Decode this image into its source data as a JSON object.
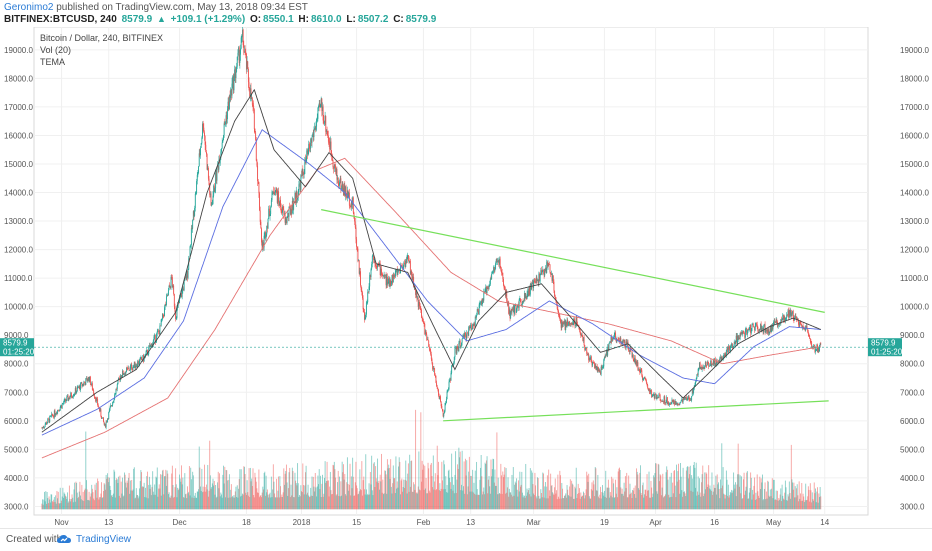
{
  "header": {
    "username": "Geronimo2",
    "published_text": "published on TradingView.com, May 13, 2018 09:34 EST",
    "symbol": "BITFINEX:BTCUSD, 240",
    "last": "8579.9",
    "change": "+109.1 (+1.29%)",
    "o_label": "O:",
    "o": "8550.1",
    "h_label": "H:",
    "h": "8610.0",
    "l_label": "L:",
    "l": "8507.2",
    "c_label": "C:",
    "c": "8579.9"
  },
  "legend": {
    "title": "Bitcoin / Dollar, 240, BITFINEX",
    "volume": "Vol (20)",
    "indicator": "TEMA"
  },
  "price_badge": {
    "price": "8579.9",
    "countdown": "01:25:20"
  },
  "footer": {
    "created_with": "Created with",
    "brand": "TradingView"
  },
  "colors": {
    "up": "#26a69a",
    "down": "#ef5350",
    "tema_fast": "#444444",
    "tema_mid": "#5b6ee1",
    "tema_slow": "#e57373",
    "trendline": "#76e05a",
    "badge": "#26a69a"
  },
  "chart_data": {
    "type": "candlestick",
    "symbol": "BITFINEX:BTCUSD",
    "timeframe": "240",
    "ylim": [
      2700,
      19800
    ],
    "y_ticks": [
      3000,
      4000,
      5000,
      6000,
      7000,
      8000,
      9000,
      10000,
      11000,
      12000,
      13000,
      14000,
      15000,
      16000,
      17000,
      18000,
      19000
    ],
    "y_tick_labels": [
      "3000.0",
      "4000.0",
      "5000.0",
      "6000.0",
      "7000.0",
      "8000.0",
      "9000.0",
      "10000.0",
      "11000.0",
      "12000.0",
      "13000.0",
      "14000.0",
      "15000.0",
      "16000.0",
      "17000.0",
      "18000.0",
      "19000.0"
    ],
    "x_range": [
      "2017-10-25",
      "2018-05-25"
    ],
    "x_ticks": [
      {
        "label": "Nov",
        "date": "2017-11-01"
      },
      {
        "label": "13",
        "date": "2017-11-13"
      },
      {
        "label": "Dec",
        "date": "2017-12-01"
      },
      {
        "label": "18",
        "date": "2017-12-18"
      },
      {
        "label": "2018",
        "date": "2018-01-01"
      },
      {
        "label": "15",
        "date": "2018-01-15"
      },
      {
        "label": "Feb",
        "date": "2018-02-01"
      },
      {
        "label": "13",
        "date": "2018-02-13"
      },
      {
        "label": "Mar",
        "date": "2018-03-01"
      },
      {
        "label": "19",
        "date": "2018-03-19"
      },
      {
        "label": "Apr",
        "date": "2018-04-01"
      },
      {
        "label": "16",
        "date": "2018-04-16"
      },
      {
        "label": "May",
        "date": "2018-05-01"
      },
      {
        "label": "14",
        "date": "2018-05-14"
      }
    ],
    "price_path": [
      [
        "2017-10-27",
        5750
      ],
      [
        "2017-11-02",
        6700
      ],
      [
        "2017-11-08",
        7500
      ],
      [
        "2017-11-12",
        5800
      ],
      [
        "2017-11-16",
        7600
      ],
      [
        "2017-11-22",
        8200
      ],
      [
        "2017-11-26",
        9200
      ],
      [
        "2017-11-29",
        11000
      ],
      [
        "2017-11-30",
        9700
      ],
      [
        "2017-12-03",
        11200
      ],
      [
        "2017-12-07",
        16500
      ],
      [
        "2017-12-09",
        13500
      ],
      [
        "2017-12-13",
        16800
      ],
      [
        "2017-12-17",
        19400
      ],
      [
        "2017-12-20",
        16500
      ],
      [
        "2017-12-22",
        12000
      ],
      [
        "2017-12-25",
        14200
      ],
      [
        "2017-12-28",
        13000
      ],
      [
        "2017-12-31",
        14000
      ],
      [
        "2018-01-06",
        17100
      ],
      [
        "2018-01-10",
        14500
      ],
      [
        "2018-01-14",
        13600
      ],
      [
        "2018-01-17",
        9500
      ],
      [
        "2018-01-19",
        11800
      ],
      [
        "2018-01-23",
        10800
      ],
      [
        "2018-01-28",
        11700
      ],
      [
        "2018-02-02",
        8800
      ],
      [
        "2018-02-06",
        6200
      ],
      [
        "2018-02-09",
        8400
      ],
      [
        "2018-02-14",
        9500
      ],
      [
        "2018-02-20",
        11700
      ],
      [
        "2018-02-23",
        9700
      ],
      [
        "2018-03-05",
        11500
      ],
      [
        "2018-03-08",
        9300
      ],
      [
        "2018-03-12",
        9500
      ],
      [
        "2018-03-15",
        8200
      ],
      [
        "2018-03-18",
        7700
      ],
      [
        "2018-03-21",
        9000
      ],
      [
        "2018-03-25",
        8600
      ],
      [
        "2018-03-31",
        6900
      ],
      [
        "2018-04-06",
        6600
      ],
      [
        "2018-04-10",
        6800
      ],
      [
        "2018-04-12",
        7900
      ],
      [
        "2018-04-17",
        8100
      ],
      [
        "2018-04-22",
        8900
      ],
      [
        "2018-04-26",
        9300
      ],
      [
        "2018-04-30",
        9200
      ],
      [
        "2018-05-05",
        9800
      ],
      [
        "2018-05-09",
        9300
      ],
      [
        "2018-05-11",
        8500
      ],
      [
        "2018-05-13",
        8580
      ]
    ],
    "tema_fast": [
      [
        "2017-10-27",
        5600
      ],
      [
        "2017-11-10",
        7000
      ],
      [
        "2017-11-20",
        7800
      ],
      [
        "2017-11-30",
        9800
      ],
      [
        "2017-12-08",
        14000
      ],
      [
        "2017-12-15",
        16500
      ],
      [
        "2017-12-20",
        17600
      ],
      [
        "2017-12-25",
        15500
      ],
      [
        "2018-01-02",
        14200
      ],
      [
        "2018-01-08",
        15400
      ],
      [
        "2018-01-14",
        14500
      ],
      [
        "2018-01-20",
        11500
      ],
      [
        "2018-01-28",
        11200
      ],
      [
        "2018-02-04",
        9200
      ],
      [
        "2018-02-09",
        7800
      ],
      [
        "2018-02-15",
        9500
      ],
      [
        "2018-02-22",
        10500
      ],
      [
        "2018-03-03",
        10800
      ],
      [
        "2018-03-10",
        9700
      ],
      [
        "2018-03-18",
        8400
      ],
      [
        "2018-03-25",
        8700
      ],
      [
        "2018-04-02",
        7600
      ],
      [
        "2018-04-08",
        6800
      ],
      [
        "2018-04-14",
        7600
      ],
      [
        "2018-04-22",
        8700
      ],
      [
        "2018-04-30",
        9300
      ],
      [
        "2018-05-06",
        9600
      ],
      [
        "2018-05-13",
        9200
      ]
    ],
    "tema_mid": [
      [
        "2017-10-27",
        5500
      ],
      [
        "2017-11-10",
        6400
      ],
      [
        "2017-11-22",
        7500
      ],
      [
        "2017-12-02",
        9500
      ],
      [
        "2017-12-12",
        13500
      ],
      [
        "2017-12-22",
        16200
      ],
      [
        "2018-01-03",
        15000
      ],
      [
        "2018-01-12",
        14000
      ],
      [
        "2018-01-22",
        12200
      ],
      [
        "2018-02-02",
        10200
      ],
      [
        "2018-02-12",
        8800
      ],
      [
        "2018-02-22",
        9200
      ],
      [
        "2018-03-05",
        10200
      ],
      [
        "2018-03-16",
        9400
      ],
      [
        "2018-03-28",
        8300
      ],
      [
        "2018-04-08",
        7500
      ],
      [
        "2018-04-16",
        7300
      ],
      [
        "2018-04-26",
        8600
      ],
      [
        "2018-05-05",
        9300
      ],
      [
        "2018-05-13",
        9200
      ]
    ],
    "tema_slow": [
      [
        "2017-10-27",
        4700
      ],
      [
        "2017-11-12",
        5600
      ],
      [
        "2017-11-28",
        6800
      ],
      [
        "2017-12-10",
        9200
      ],
      [
        "2017-12-24",
        12500
      ],
      [
        "2018-01-05",
        14800
      ],
      [
        "2018-01-12",
        15200
      ],
      [
        "2018-01-25",
        13300
      ],
      [
        "2018-02-08",
        11200
      ],
      [
        "2018-02-20",
        10200
      ],
      [
        "2018-03-06",
        9800
      ],
      [
        "2018-03-20",
        9400
      ],
      [
        "2018-04-05",
        8800
      ],
      [
        "2018-04-18",
        8000
      ],
      [
        "2018-04-30",
        8300
      ],
      [
        "2018-05-13",
        8600
      ]
    ],
    "trendlines": [
      {
        "from": [
          "2018-01-06",
          13400
        ],
        "to": [
          "2018-05-14",
          9800
        ]
      },
      {
        "from": [
          "2018-02-06",
          6000
        ],
        "to": [
          "2018-05-15",
          6700
        ]
      }
    ],
    "volume_envelope": [
      [
        "2017-10-27",
        3500
      ],
      [
        "2017-11-15",
        4400
      ],
      [
        "2017-12-10",
        4500
      ],
      [
        "2018-01-05",
        4600
      ],
      [
        "2018-02-06",
        5200
      ],
      [
        "2018-03-05",
        4300
      ],
      [
        "2018-04-10",
        4600
      ],
      [
        "2018-05-13",
        3800
      ]
    ],
    "volume_baseline": 2900
  }
}
